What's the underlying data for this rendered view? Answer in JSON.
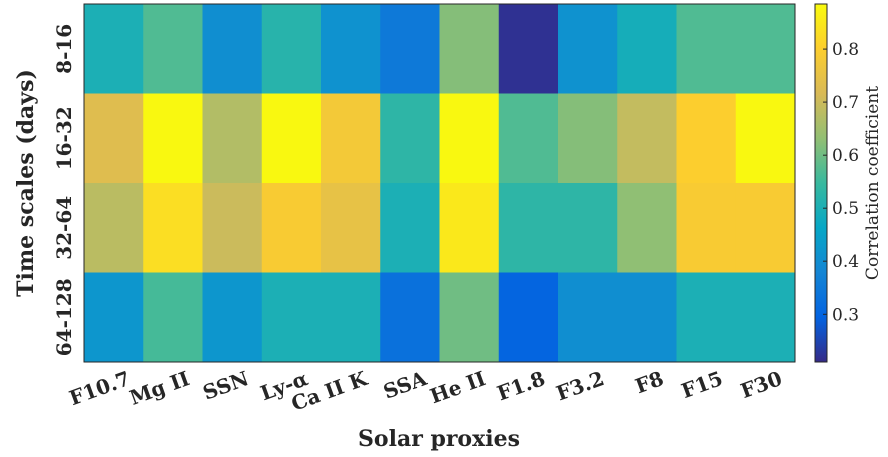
{
  "chart_data": {
    "type": "heatmap",
    "xlabel": "Solar proxies",
    "ylabel": "Time scales (days)",
    "x_categories": [
      "F10.7",
      "Mg II",
      "SSN",
      "Ly-α",
      "Ca II K",
      "SSA",
      "He II",
      "F1.8",
      "F3.2",
      "F8",
      "F15",
      "F30"
    ],
    "y_categories": [
      "8-16",
      "16-32",
      "32-64",
      "64-128"
    ],
    "values": [
      [
        0.5,
        0.57,
        0.4,
        0.52,
        0.41,
        0.35,
        0.62,
        0.22,
        0.41,
        0.49,
        0.57,
        0.57
      ],
      [
        0.73,
        0.88,
        0.67,
        0.88,
        0.78,
        0.53,
        0.88,
        0.57,
        0.62,
        0.69,
        0.8,
        0.88
      ],
      [
        0.68,
        0.83,
        0.7,
        0.79,
        0.75,
        0.5,
        0.85,
        0.53,
        0.53,
        0.63,
        0.79,
        0.79
      ],
      [
        0.42,
        0.56,
        0.42,
        0.5,
        0.5,
        0.33,
        0.6,
        0.3,
        0.4,
        0.4,
        0.5,
        0.5
      ]
    ],
    "colorbar": {
      "label": "Correlation coefficient",
      "range": [
        0.21,
        0.885
      ],
      "ticks": [
        "0.3",
        "0.4",
        "0.5",
        "0.6",
        "0.7",
        "0.8"
      ],
      "colormap": "parula"
    },
    "grid": false
  }
}
